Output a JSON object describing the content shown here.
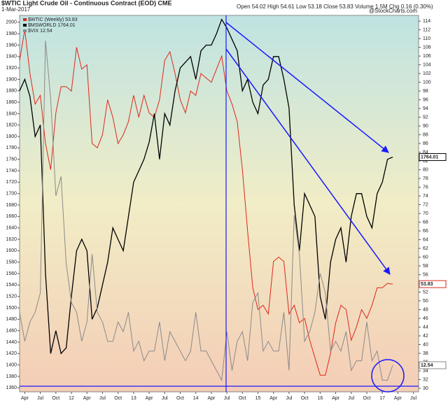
{
  "chart_data": {
    "type": "line",
    "title": "$WTIC Light Crude Oil - Continuous Contract (EOD) CME",
    "subtitle": "1-Mar-2017",
    "info": "Open 54.02 High 54.61 Low 53.18 Close 53.83 Volume 1.5M Chg 0.16 (0.30%)",
    "credit": "@StockCharts.com",
    "x": [
      "2011-03",
      "2011-04",
      "2011-05",
      "2011-06",
      "2011-07",
      "2011-08",
      "2011-09",
      "2011-10",
      "2011-11",
      "2011-12",
      "2012-01",
      "2012-02",
      "2012-03",
      "2012-04",
      "2012-05",
      "2012-06",
      "2012-07",
      "2012-08",
      "2012-09",
      "2012-10",
      "2012-11",
      "2012-12",
      "2013-01",
      "2013-02",
      "2013-03",
      "2013-04",
      "2013-05",
      "2013-06",
      "2013-07",
      "2013-08",
      "2013-09",
      "2013-10",
      "2013-11",
      "2013-12",
      "2014-01",
      "2014-02",
      "2014-03",
      "2014-04",
      "2014-05",
      "2014-06",
      "2014-07",
      "2014-08",
      "2014-09",
      "2014-10",
      "2014-11",
      "2014-12",
      "2015-01",
      "2015-02",
      "2015-03",
      "2015-04",
      "2015-05",
      "2015-06",
      "2015-07",
      "2015-08",
      "2015-09",
      "2015-10",
      "2015-11",
      "2015-12",
      "2016-01",
      "2016-02",
      "2016-03",
      "2016-04",
      "2016-05",
      "2016-06",
      "2016-07",
      "2016-08",
      "2016-09",
      "2016-10",
      "2016-11",
      "2016-12",
      "2017-01",
      "2017-02",
      "2017-03"
    ],
    "series": [
      {
        "name": "$WTIC (Weekly) 53.83",
        "color": "#e0261b",
        "axis": "y2",
        "values": [
          105,
          112,
          102,
          95,
          97,
          86,
          80,
          93,
          99,
          99,
          98,
          108,
          103,
          104,
          86,
          85,
          88,
          96,
          92,
          86,
          88,
          91,
          97,
          92,
          97,
          93,
          92,
          96,
          105,
          107,
          102,
          96,
          93,
          98,
          97,
          102,
          101,
          100,
          103,
          106,
          98,
          95,
          91,
          80,
          66,
          53,
          48,
          49,
          47,
          59,
          60,
          59,
          47,
          49,
          45,
          46,
          41,
          37,
          33,
          33,
          38,
          45,
          49,
          48,
          41,
          44,
          48,
          46,
          49,
          53,
          53,
          54,
          53.83
        ]
      },
      {
        "name": "$MSWORLD 1764.01",
        "color": "#000000",
        "values": [
          1880,
          1900,
          1870,
          1800,
          1820,
          1560,
          1420,
          1460,
          1420,
          1430,
          1520,
          1600,
          1620,
          1600,
          1480,
          1500,
          1540,
          1580,
          1640,
          1620,
          1600,
          1660,
          1720,
          1740,
          1760,
          1790,
          1840,
          1760,
          1840,
          1820,
          1880,
          1920,
          1930,
          1940,
          1900,
          1950,
          1960,
          1960,
          1980,
          2005,
          1990,
          1970,
          1950,
          1880,
          1900,
          1860,
          1840,
          1890,
          1900,
          1940,
          1940,
          1900,
          1850,
          1680,
          1600,
          1700,
          1680,
          1660,
          1520,
          1480,
          1580,
          1620,
          1640,
          1580,
          1660,
          1700,
          1700,
          1660,
          1640,
          1700,
          1720,
          1760,
          1764.01
        ]
      },
      {
        "name": "$VIX 12.54",
        "color": "#8a8a8a",
        "axis": "y3",
        "values": [
          18,
          15,
          17,
          18,
          20,
          46,
          40,
          30,
          32,
          23,
          19,
          18,
          15,
          17,
          24,
          18,
          17,
          15,
          15,
          17,
          16,
          18,
          14,
          15,
          13,
          14,
          14,
          17,
          13,
          16,
          15,
          14,
          13,
          14,
          18,
          14,
          14,
          13,
          12,
          11,
          16,
          12,
          15,
          16,
          13,
          19,
          20,
          14,
          15,
          14,
          14,
          18,
          12,
          28,
          24,
          15,
          16,
          18,
          22,
          20,
          14,
          15,
          14,
          16,
          12,
          13,
          13,
          17,
          13,
          14,
          11,
          11,
          12.54
        ]
      }
    ],
    "xlim": [
      "2011-03",
      "2017-08"
    ],
    "xticks": [
      {
        "value": "2011-04",
        "label": "Apr"
      },
      {
        "value": "2011-07",
        "label": "Jul"
      },
      {
        "value": "2011-10",
        "label": "Oct"
      },
      {
        "value": "2012-01",
        "label": "12"
      },
      {
        "value": "2012-04",
        "label": "Apr"
      },
      {
        "value": "2012-07",
        "label": "Jul"
      },
      {
        "value": "2012-10",
        "label": "Oct"
      },
      {
        "value": "2013-01",
        "label": "13"
      },
      {
        "value": "2013-04",
        "label": "Apr"
      },
      {
        "value": "2013-07",
        "label": "Jul"
      },
      {
        "value": "2013-10",
        "label": "Oct"
      },
      {
        "value": "2014-01",
        "label": "14"
      },
      {
        "value": "2014-04",
        "label": "Apr"
      },
      {
        "value": "2014-07",
        "label": "Jul"
      },
      {
        "value": "2014-10",
        "label": "Oct"
      },
      {
        "value": "2015-01",
        "label": "15"
      },
      {
        "value": "2015-04",
        "label": "Apr"
      },
      {
        "value": "2015-07",
        "label": "Jul"
      },
      {
        "value": "2015-10",
        "label": "Oct"
      },
      {
        "value": "2016-01",
        "label": "16"
      },
      {
        "value": "2016-04",
        "label": "Apr"
      },
      {
        "value": "2016-07",
        "label": "Jul"
      },
      {
        "value": "2016-10",
        "label": "Oct"
      },
      {
        "value": "2017-01",
        "label": "17"
      },
      {
        "value": "2017-04",
        "label": "Apr"
      },
      {
        "value": "2017-07",
        "label": "Jul"
      }
    ],
    "ylim": [
      1353,
      2012
    ],
    "yticks": [
      1360,
      1380,
      1400,
      1420,
      1440,
      1460,
      1480,
      1500,
      1520,
      1540,
      1560,
      1580,
      1600,
      1620,
      1640,
      1660,
      1680,
      1700,
      1720,
      1740,
      1760,
      1780,
      1800,
      1820,
      1840,
      1860,
      1880,
      1900,
      1920,
      1940,
      1960,
      1980,
      2000
    ],
    "y2lim": [
      29.2,
      115.3
    ],
    "y2ticks": [
      30,
      32,
      34,
      36,
      38,
      40,
      42,
      44,
      46,
      48,
      50,
      52,
      54,
      56,
      58,
      60,
      62,
      64,
      66,
      68,
      70,
      72,
      74,
      76,
      78,
      80,
      82,
      84,
      86,
      88,
      90,
      92,
      94,
      96,
      98,
      100,
      102,
      104,
      106,
      108,
      110,
      112,
      114
    ],
    "y3lim": [
      9.8,
      48.6
    ]
  }
}
